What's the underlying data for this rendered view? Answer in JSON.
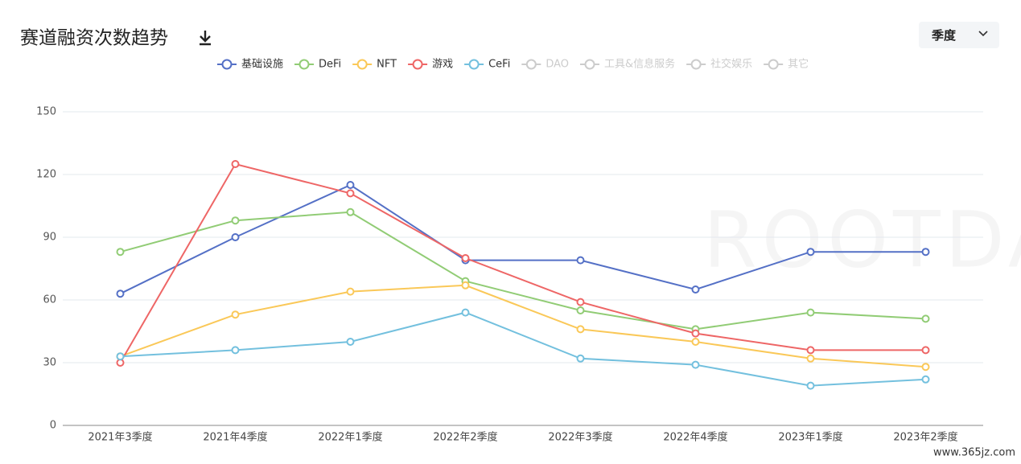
{
  "chart_data": {
    "type": "line",
    "title": "赛道融资次数趋势",
    "period": "季度",
    "categories": [
      "2021年3季度",
      "2021年4季度",
      "2022年1季度",
      "2022年2季度",
      "2022年3季度",
      "2022年4季度",
      "2023年1季度",
      "2023年2季度"
    ],
    "series": [
      {
        "name": "基础设施",
        "color": "#5470c6",
        "values": [
          63,
          90,
          115,
          79,
          79,
          65,
          83,
          83
        ]
      },
      {
        "name": "DeFi",
        "color": "#91cc75",
        "values": [
          83,
          98,
          102,
          69,
          55,
          46,
          54,
          51
        ]
      },
      {
        "name": "NFT",
        "color": "#fac858",
        "values": [
          33,
          53,
          64,
          67,
          46,
          40,
          32,
          28
        ]
      },
      {
        "name": "游戏",
        "color": "#ee6666",
        "values": [
          30,
          125,
          111,
          80,
          59,
          44,
          36,
          36
        ]
      },
      {
        "name": "CeFi",
        "color": "#73c0de",
        "values": [
          33,
          36,
          40,
          54,
          32,
          29,
          19,
          22
        ]
      }
    ],
    "hidden_series": [
      "DAO",
      "工具&信息服务",
      "社交娱乐",
      "其它"
    ],
    "ylim": [
      0,
      150
    ],
    "yticks": [
      0,
      30,
      60,
      90,
      120,
      150
    ],
    "grid": true,
    "legend": "top",
    "watermark": "ROOTDATA",
    "site": "www.365jz.com"
  }
}
